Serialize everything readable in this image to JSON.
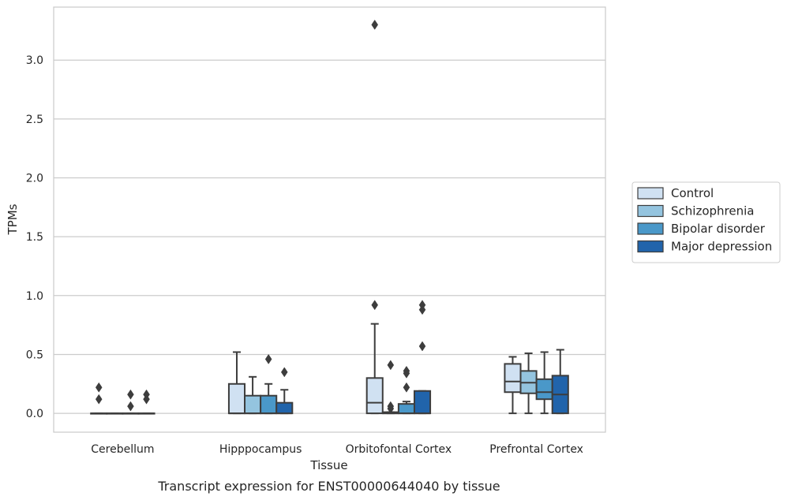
{
  "caption": "Transcript expression for ENST00000644040 by tissue",
  "chart_data": {
    "type": "boxplot",
    "xlabel": "Tissue",
    "ylabel": "TPMs",
    "ylim": [
      -0.16,
      3.45
    ],
    "yticks": [
      0.0,
      0.5,
      1.0,
      1.5,
      2.0,
      2.5,
      3.0
    ],
    "ytick_labels": [
      "0.0",
      "0.5",
      "1.0",
      "1.5",
      "2.0",
      "2.5",
      "3.0"
    ],
    "grid": "horizontal",
    "legend_position": "right",
    "categories": [
      "Cerebellum",
      "Hipppocampus",
      "Orbitofontal Cortex",
      "Prefrontal Cortex"
    ],
    "series": [
      {
        "name": "Control",
        "color": "#d0e1f2",
        "boxes": [
          {
            "min": 0.0,
            "q1": 0.0,
            "median": 0.0,
            "q3": 0.0,
            "max": 0.0,
            "outliers": [
              0.12,
              0.22
            ]
          },
          {
            "min": 0.0,
            "q1": 0.0,
            "median": 0.0,
            "q3": 0.25,
            "max": 0.52,
            "outliers": []
          },
          {
            "min": 0.0,
            "q1": 0.0,
            "median": 0.09,
            "q3": 0.3,
            "max": 0.76,
            "outliers": [
              0.92,
              3.3
            ]
          },
          {
            "min": 0.0,
            "q1": 0.18,
            "median": 0.27,
            "q3": 0.42,
            "max": 0.48,
            "outliers": []
          }
        ]
      },
      {
        "name": "Schizophrenia",
        "color": "#94c4df",
        "boxes": [
          {
            "min": 0.0,
            "q1": 0.0,
            "median": 0.0,
            "q3": 0.0,
            "max": 0.0,
            "outliers": []
          },
          {
            "min": 0.0,
            "q1": 0.0,
            "median": 0.0,
            "q3": 0.15,
            "max": 0.31,
            "outliers": []
          },
          {
            "min": 0.0,
            "q1": 0.0,
            "median": 0.0,
            "q3": 0.01,
            "max": 0.01,
            "outliers": [
              0.04,
              0.06,
              0.41
            ]
          },
          {
            "min": 0.0,
            "q1": 0.17,
            "median": 0.26,
            "q3": 0.36,
            "max": 0.51,
            "outliers": []
          }
        ]
      },
      {
        "name": "Bipolar disorder",
        "color": "#4a98c9",
        "boxes": [
          {
            "min": 0.0,
            "q1": 0.0,
            "median": 0.0,
            "q3": 0.0,
            "max": 0.0,
            "outliers": [
              0.06,
              0.16
            ]
          },
          {
            "min": 0.0,
            "q1": 0.0,
            "median": 0.0,
            "q3": 0.15,
            "max": 0.25,
            "outliers": [
              0.46
            ]
          },
          {
            "min": 0.0,
            "q1": 0.0,
            "median": 0.0,
            "q3": 0.08,
            "max": 0.1,
            "outliers": [
              0.22,
              0.34,
              0.36
            ]
          },
          {
            "min": 0.0,
            "q1": 0.12,
            "median": 0.18,
            "q3": 0.29,
            "max": 0.52,
            "outliers": []
          }
        ]
      },
      {
        "name": "Major depression",
        "color": "#2164ab",
        "boxes": [
          {
            "min": 0.0,
            "q1": 0.0,
            "median": 0.0,
            "q3": 0.0,
            "max": 0.0,
            "outliers": [
              0.12,
              0.16
            ]
          },
          {
            "min": 0.0,
            "q1": 0.0,
            "median": 0.0,
            "q3": 0.09,
            "max": 0.2,
            "outliers": [
              0.35
            ]
          },
          {
            "min": 0.0,
            "q1": 0.0,
            "median": 0.0,
            "q3": 0.19,
            "max": 0.19,
            "outliers": [
              0.57,
              0.88,
              0.92
            ]
          },
          {
            "min": 0.0,
            "q1": 0.0,
            "median": 0.16,
            "q3": 0.32,
            "max": 0.54,
            "outliers": []
          }
        ]
      }
    ]
  }
}
